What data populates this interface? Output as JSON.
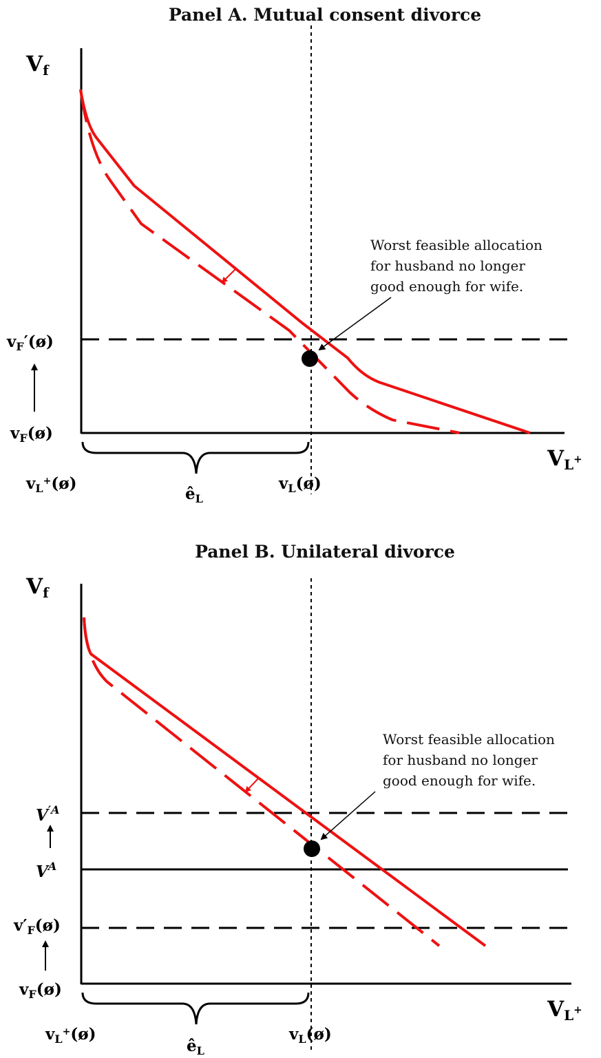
{
  "panel_a": {
    "title": "Panel A. Mutual consent divorce",
    "y_axis": "V",
    "y_axis_sub": "f",
    "x_axis": "V",
    "x_axis_sub": "L",
    "x_axis_sup": "+",
    "vf_prime_label": "v",
    "vf_prime_sub": "F",
    "vf_prime_rest": "′(ø)",
    "vf_label": "v",
    "vf_sub": "F",
    "vf_rest": "(ø)",
    "vlplus_label": "v",
    "vlplus_sub": "L",
    "vlplus_sup": "+",
    "vlplus_rest": "(ø)",
    "ehat_label": "ê",
    "ehat_sub": "L",
    "vl_label": "v",
    "vl_sub": "L",
    "vl_rest": "(ø)",
    "annotation": [
      "Worst feasible allocation",
      "for husband no longer",
      "good enough for wife."
    ]
  },
  "panel_b": {
    "title": "Panel B. Unilateral divorce",
    "y_axis": "V",
    "y_axis_sub": "f",
    "x_axis": "V",
    "x_axis_sub": "L",
    "x_axis_sup": "+",
    "vprimea_label": "V",
    "vprimea_sup": "′A",
    "va_label": "V",
    "va_sup": "A",
    "vf_prime_label": "v′",
    "vf_prime_sub": "F",
    "vf_prime_rest": "(ø)",
    "vf_label": "v",
    "vf_sub": "F",
    "vf_rest": "(ø)",
    "vlplus_label": "v",
    "vlplus_sub": "L",
    "vlplus_sup": "+",
    "vlplus_rest": "(ø)",
    "ehat_label": "ê",
    "ehat_sub": "L",
    "vl_label": "v",
    "vl_sub": "L",
    "vl_rest": "(ø)",
    "annotation": [
      "Worst feasible allocation",
      "for husband no longer",
      "good enough for wife."
    ]
  },
  "colors": {
    "frontier": "#ee1111",
    "axes": "#000000"
  }
}
